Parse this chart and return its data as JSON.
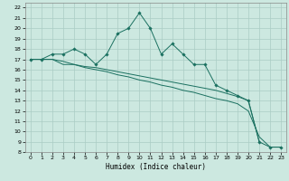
{
  "xlabel": "Humidex (Indice chaleur)",
  "xlim": [
    -0.5,
    23.5
  ],
  "ylim": [
    8,
    22.5
  ],
  "xticks": [
    0,
    1,
    2,
    3,
    4,
    5,
    6,
    7,
    8,
    9,
    10,
    11,
    12,
    13,
    14,
    15,
    16,
    17,
    18,
    19,
    20,
    21,
    22,
    23
  ],
  "yticks": [
    8,
    9,
    10,
    11,
    12,
    13,
    14,
    15,
    16,
    17,
    18,
    19,
    20,
    21,
    22
  ],
  "bg_color": "#cce8e0",
  "grid_color": "#aaccc4",
  "line_color": "#1a7060",
  "series_main": {
    "x": [
      0,
      1,
      2,
      3,
      4,
      5,
      6,
      7,
      8,
      9,
      10,
      11,
      12,
      13,
      14,
      15,
      16,
      17,
      18,
      19,
      20,
      21,
      22,
      23
    ],
    "y": [
      17.0,
      17.0,
      17.5,
      17.5,
      18.0,
      17.5,
      16.5,
      17.5,
      19.5,
      20.0,
      21.5,
      20.0,
      17.5,
      18.5,
      17.5,
      16.5,
      16.5,
      14.5,
      14.0,
      13.5,
      13.0,
      9.0,
      8.5,
      8.5
    ]
  },
  "series_line1": {
    "x": [
      0,
      1,
      2,
      3,
      4,
      5,
      6,
      7,
      8,
      9,
      10,
      11,
      12,
      13,
      14,
      15,
      16,
      17,
      18,
      19,
      20,
      21
    ],
    "y": [
      17.0,
      17.0,
      17.0,
      16.8,
      16.5,
      16.3,
      16.2,
      16.0,
      15.8,
      15.6,
      15.4,
      15.2,
      15.0,
      14.8,
      14.6,
      14.4,
      14.2,
      14.0,
      13.7,
      13.4,
      13.0,
      9.0
    ]
  },
  "series_line2": {
    "x": [
      0,
      1,
      2,
      3,
      4,
      5,
      6,
      7,
      8,
      9,
      10,
      11,
      12,
      13,
      14,
      15,
      16,
      17,
      18,
      19,
      20,
      21,
      22,
      23
    ],
    "y": [
      17.0,
      17.0,
      17.0,
      16.5,
      16.5,
      16.2,
      16.0,
      15.8,
      15.5,
      15.3,
      15.0,
      14.8,
      14.5,
      14.3,
      14.0,
      13.8,
      13.5,
      13.2,
      13.0,
      12.7,
      12.0,
      9.5,
      8.5,
      8.5
    ]
  }
}
